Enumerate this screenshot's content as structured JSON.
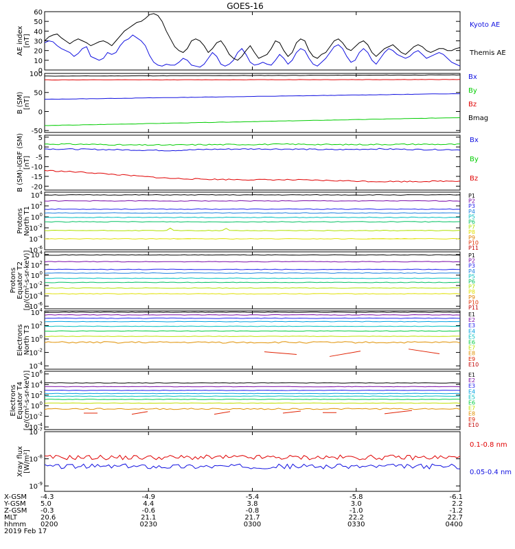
{
  "title": "GOES-16",
  "colors": {
    "blue": "#1010e0",
    "black": "#000000",
    "red": "#e00000",
    "green": "#00cc00",
    "P1": "#000000",
    "P2": "#7a0aa8",
    "P3": "#2020ee",
    "P4": "#1a7fe0",
    "P5": "#00bfbf",
    "P6": "#00c060",
    "P7": "#b0e000",
    "P8": "#e0e000",
    "P9": "#e08000",
    "P10": "#e03000",
    "P11": "#c00000",
    "E1": "#000000",
    "E2": "#7a0aa8",
    "E3": "#2020ee",
    "E4": "#00a0e0",
    "E5": "#00c0c0",
    "E6": "#00cc40",
    "E7": "#c0e000",
    "E8": "#e09000",
    "E9": "#e02000",
    "E10": "#c00000"
  },
  "chart_data": [
    {
      "type": "line",
      "id": "ae",
      "ylabel": [
        "AE index",
        "[nT]"
      ],
      "yticks": [
        "60",
        "50",
        "40",
        "30",
        "20",
        "10",
        "0"
      ],
      "ylim": [
        0,
        60
      ],
      "legend": [
        "Kyoto AE",
        "Themis AE"
      ],
      "series": [
        {
          "name": "Kyoto AE",
          "color": "#1010e0",
          "values": [
            28,
            30,
            29,
            25,
            22,
            20,
            18,
            14,
            17,
            22,
            24,
            14,
            12,
            10,
            12,
            18,
            16,
            18,
            25,
            30,
            32,
            36,
            33,
            30,
            25,
            15,
            8,
            5,
            4,
            6,
            5,
            5,
            8,
            12,
            10,
            5,
            4,
            3,
            6,
            12,
            18,
            14,
            6,
            4,
            6,
            10,
            18,
            22,
            16,
            8,
            5,
            6,
            8,
            6,
            5,
            10,
            16,
            12,
            6,
            10,
            18,
            22,
            20,
            12,
            6,
            4,
            8,
            12,
            18,
            24,
            26,
            22,
            14,
            8,
            10,
            18,
            22,
            18,
            10,
            6,
            12,
            18,
            22,
            20,
            16,
            14,
            12,
            14,
            18,
            20,
            16,
            12,
            14,
            16,
            18,
            16,
            12,
            8,
            6,
            4
          ]
        },
        {
          "name": "Themis AE",
          "color": "#000000",
          "values": [
            30,
            34,
            36,
            37,
            33,
            30,
            27,
            30,
            32,
            30,
            28,
            25,
            27,
            29,
            30,
            28,
            25,
            30,
            35,
            40,
            43,
            46,
            49,
            50,
            53,
            57,
            58,
            56,
            50,
            40,
            32,
            24,
            20,
            18,
            22,
            30,
            32,
            30,
            25,
            18,
            22,
            28,
            30,
            24,
            16,
            12,
            10,
            14,
            20,
            25,
            18,
            12,
            14,
            16,
            22,
            30,
            28,
            20,
            14,
            18,
            28,
            32,
            30,
            20,
            14,
            12,
            16,
            18,
            24,
            30,
            32,
            28,
            22,
            20,
            24,
            28,
            30,
            26,
            18,
            14,
            18,
            22,
            24,
            26,
            22,
            18,
            16,
            20,
            24,
            26,
            24,
            20,
            18,
            20,
            22,
            22,
            20,
            20,
            22,
            23
          ]
        }
      ]
    },
    {
      "type": "line",
      "id": "bsm",
      "ylabel": [
        "B (SM)",
        "[nT]"
      ],
      "yticks": [
        "100",
        "50",
        "0",
        "-50"
      ],
      "ylim": [
        -55,
        100
      ],
      "legend": [
        "Bx",
        "By",
        "Bz",
        "Bmag"
      ],
      "series": [
        {
          "name": "Bmag",
          "color": "#000000",
          "start": 93,
          "end": 96
        },
        {
          "name": "Bz",
          "color": "#e00000",
          "start": 83,
          "end": 84
        },
        {
          "name": "Bx",
          "color": "#1010e0",
          "start": 32,
          "end": 47
        },
        {
          "name": "By",
          "color": "#00cc00",
          "start": -37,
          "end": -16
        }
      ]
    },
    {
      "type": "line",
      "id": "bigrf",
      "ylabel": [
        "B (SM)-IGRF (SM)",
        "[nT]"
      ],
      "yticks": [
        "5",
        "0",
        "-5",
        "-10",
        "-15",
        "-20"
      ],
      "ylim": [
        -22,
        6
      ],
      "legend": [
        "Bx",
        "By",
        "Bz"
      ],
      "series": [
        {
          "name": "By",
          "color": "#00cc00",
          "profile": [
            1.5,
            1.4,
            1.0,
            1.0,
            1.2,
            1.3,
            1.4,
            1.2,
            1.3,
            1.4,
            1.3
          ]
        },
        {
          "name": "Bx",
          "color": "#1010e0",
          "profile": [
            -1.0,
            -1.2,
            -1.5,
            -1.8,
            -1.2,
            -1.0,
            -1.1,
            -1.4,
            -1.0,
            -1.3,
            -1.4
          ]
        },
        {
          "name": "Bz",
          "color": "#e00000",
          "profile": [
            -12,
            -13,
            -14.5,
            -16,
            -16.5,
            -16.7,
            -16.8,
            -17.2,
            -17.6,
            -17.6,
            -17.3
          ]
        }
      ]
    },
    {
      "type": "line",
      "id": "pn",
      "ylabel": [
        "Protons",
        "North T1"
      ],
      "yticks": [
        "10^4",
        "10^2",
        "10^0",
        "10^-2",
        "10^-4",
        "10^-6"
      ],
      "ylim": [
        -6,
        4.5
      ],
      "legend": [
        "P1",
        "P2",
        "P3",
        "P4",
        "P5",
        "P6",
        "P7",
        "P8",
        "P9",
        "P10",
        "P11"
      ]
    },
    {
      "type": "line",
      "id": "pe",
      "ylabel": [
        "Protons",
        "Equator T2",
        "[p/(cm²-s-sr-keV)]"
      ],
      "yticks": [
        "10^4",
        "10^2",
        "10^0",
        "10^-2",
        "10^-4",
        "10^-6"
      ],
      "ylim": [
        -6.5,
        4.5
      ],
      "legend": [
        "P1",
        "P2",
        "P3",
        "P4",
        "P5",
        "P6",
        "P7",
        "P8",
        "P9",
        "P10",
        "P11"
      ]
    },
    {
      "type": "line",
      "id": "en",
      "ylabel": [
        "Electrons",
        "North T3"
      ],
      "yticks": [
        "10^4",
        "10^2",
        "10^0",
        "10^-2",
        "10^-4"
      ],
      "ylim": [
        -4.5,
        4.2
      ],
      "legend": [
        "E1",
        "E2",
        "E3",
        "E4",
        "E5",
        "E6",
        "E7",
        "E8",
        "E9",
        "E10"
      ]
    },
    {
      "type": "line",
      "id": "ee",
      "ylabel": [
        "Electrons",
        "Equator T4",
        "[e/(cm²-s-sr-keV)]"
      ],
      "yticks": [
        "10^6",
        "10^4",
        "10^2",
        "10^0",
        "10^-2",
        "10^-4"
      ],
      "ylim": [
        -4.5,
        6.5
      ],
      "legend": [
        "E1",
        "E2",
        "E3",
        "E4",
        "E5",
        "E6",
        "E7",
        "E8",
        "E9",
        "E10"
      ]
    },
    {
      "type": "line",
      "id": "xray",
      "ylabel": [
        "Xray flux",
        "[W/m²]"
      ],
      "yticks": [
        "10^-7",
        "10^-8",
        "10^-9"
      ],
      "ylim": [
        -9.2,
        -7
      ],
      "legend": [
        "0.1-0.8 nm",
        "0.05-0.4 nm"
      ],
      "series": [
        {
          "name": "0.1-0.8 nm",
          "color": "#e00000",
          "log_level": -7.95
        },
        {
          "name": "0.05-0.4 nm",
          "color": "#1010e0",
          "log_level": -8.28
        }
      ]
    }
  ],
  "xaxis": {
    "rows": [
      {
        "label": "X-GSM",
        "values": [
          "-4.3",
          "-4.9",
          "-5.4",
          "-5.8",
          "-6.1"
        ]
      },
      {
        "label": "Y-GSM",
        "values": [
          "5.0",
          "4.4",
          "3.8",
          "3.0",
          "2.2"
        ]
      },
      {
        "label": "Z-GSM",
        "values": [
          "-0.3",
          "-0.6",
          "-0.8",
          "-1.0",
          "-1.2"
        ]
      },
      {
        "label": "MLT",
        "values": [
          "20.6",
          "21.1",
          "21.7",
          "22.2",
          "22.7"
        ]
      },
      {
        "label": "hhmm",
        "values": [
          "0200",
          "0230",
          "0300",
          "0330",
          "0400"
        ]
      }
    ],
    "date": "2019 Feb 17"
  }
}
